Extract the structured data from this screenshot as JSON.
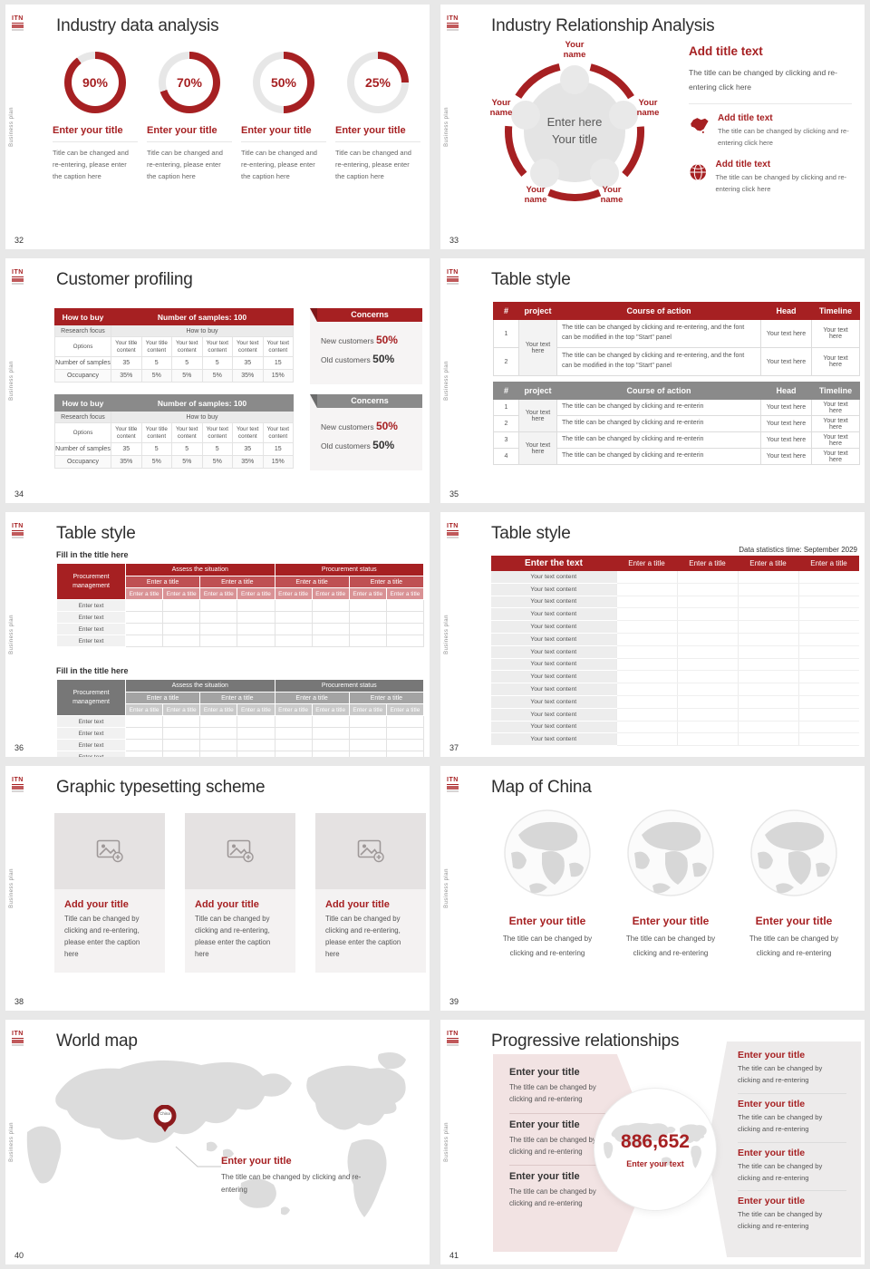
{
  "theme": {
    "accent": "#a62022",
    "accent_dark": "#7d1719",
    "sub_red": "#bf5053",
    "sub_red_light": "#d99295",
    "gray_header": "#8a8a8a",
    "ring_gray": "#e7e7e7"
  },
  "common": {
    "sidebar_label": "Business plan",
    "logo_text": "ITN"
  },
  "slides": {
    "s32": {
      "number": "32",
      "title": "Industry data analysis",
      "donuts": [
        {
          "pct": 90,
          "label": "90%",
          "title": "Enter your title",
          "caption": "Title can be changed and re-entering, please enter the caption here"
        },
        {
          "pct": 70,
          "label": "70%",
          "title": "Enter your title",
          "caption": "Title can be changed and re-entering, please enter the caption here"
        },
        {
          "pct": 50,
          "label": "50%",
          "title": "Enter your title",
          "caption": "Title can be changed and re-entering, please enter the caption here"
        },
        {
          "pct": 25,
          "label": "25%",
          "title": "Enter your title",
          "caption": "Title can be changed and re-entering, please enter the caption here"
        }
      ]
    },
    "s33": {
      "number": "33",
      "title": "Industry Relationship Analysis",
      "node_labels": [
        "Your name",
        "Your name",
        "Your name",
        "Your name",
        "Your name"
      ],
      "center_line1": "Enter here",
      "center_line2": "Your title",
      "main_title": "Add title text",
      "main_caption": "The title can be changed by clicking and re-entering click here",
      "items": [
        {
          "icon": "china-map-icon",
          "title": "Add title text",
          "caption": "The title can be changed by clicking and re-entering click here"
        },
        {
          "icon": "globe-icon",
          "title": "Add title text",
          "caption": "The title can be changed by clicking and re-entering click here"
        }
      ]
    },
    "s34": {
      "number": "34",
      "title": "Customer profiling",
      "table": {
        "header_left": "How to buy",
        "header_right": "Number of samples: 100",
        "focus_label": "Research focus",
        "focus_value": "How to buy",
        "options_label": "Options",
        "options": [
          "Your title content",
          "Your title content",
          "Your text content",
          "Your text content",
          "Your text content",
          "Your text content"
        ],
        "samples_label": "Number of samples",
        "samples": [
          "35",
          "5",
          "5",
          "5",
          "35",
          "15"
        ],
        "occupancy_label": "Occupancy",
        "occupancy": [
          "35%",
          "5%",
          "5%",
          "5%",
          "35%",
          "15%"
        ]
      },
      "concerns": {
        "title": "Concerns",
        "new_label": "New customers",
        "new_value": "50%",
        "old_label": "Old customers",
        "old_value": "50%"
      }
    },
    "s35": {
      "number": "35",
      "title": "Table style",
      "headers": [
        "#",
        "project",
        "Course of action",
        "Head",
        "Timeline"
      ],
      "t1_project": "Your text here",
      "t1_rows": [
        {
          "num": "1",
          "action": "The title can be changed by clicking and re-entering, and the font can be modified in the top \"Start\" panel",
          "head": "Your text here",
          "timeline": "Your text here"
        },
        {
          "num": "2",
          "action": "The title can be changed by clicking and re-entering, and the font can be modified in the top \"Start\" panel",
          "head": "Your text here",
          "timeline": "Your text here"
        }
      ],
      "t2_projects": [
        "Your text here",
        "Your text here"
      ],
      "t2_rows": [
        {
          "num": "1",
          "action": "The title can be changed by clicking and re-enterin",
          "head": "Your text here",
          "timeline": "Your text here"
        },
        {
          "num": "2",
          "action": "The title can be changed by clicking and re-enterin",
          "head": "Your text here",
          "timeline": "Your text here"
        },
        {
          "num": "3",
          "action": "The title can be changed by clicking and re-enterin",
          "head": "Your text here",
          "timeline": "Your text here"
        },
        {
          "num": "4",
          "action": "The title can be changed by clicking and re-enterin",
          "head": "Your text here",
          "timeline": "Your text here"
        }
      ]
    },
    "s36": {
      "number": "36",
      "title": "Table style",
      "section_heading_1": "Fill in the title here",
      "section_heading_2": "Fill in the title here",
      "corner": "Procurement management",
      "group_headers": [
        "Assess the situation",
        "Procurement status"
      ],
      "sub_headers": [
        "Enter a title",
        "Enter a title",
        "Enter a title",
        "Enter a title"
      ],
      "col_headers": [
        "Enter a title",
        "Enter a title",
        "Enter a title",
        "Enter a title",
        "Enter a title",
        "Enter a title",
        "Enter a title",
        "Enter a title"
      ],
      "row_labels": [
        "Enter text",
        "Enter text",
        "Enter text",
        "Enter text"
      ]
    },
    "s37": {
      "number": "37",
      "title": "Table style",
      "meta": "Data statistics time: September 2029",
      "header_main": "Enter the text",
      "header_cols": [
        "Enter a title",
        "Enter a title",
        "Enter a title",
        "Enter a title"
      ],
      "rows": [
        "Your text content",
        "Your text content",
        "Your text content",
        "Your text content",
        "Your text content",
        "Your text content",
        "Your text content",
        "Your text content",
        "Your text content",
        "Your text content",
        "Your text content",
        "Your text content",
        "Your text content",
        "Your text content"
      ]
    },
    "s38": {
      "number": "38",
      "title": "Graphic typesetting scheme",
      "cards": [
        {
          "title": "Add your title",
          "caption": "Title can be changed by clicking and re-entering, please enter the caption here"
        },
        {
          "title": "Add your title",
          "caption": "Title can be changed by clicking and re-entering, please enter the caption here"
        },
        {
          "title": "Add your title",
          "caption": "Title can be changed by clicking and re-entering, please enter the caption here"
        }
      ]
    },
    "s39": {
      "number": "39",
      "title": "Map of China",
      "items": [
        {
          "title": "Enter your title",
          "caption": "The title can be changed by clicking and re-entering"
        },
        {
          "title": "Enter your title",
          "caption": "The title can be changed by clicking and re-entering"
        },
        {
          "title": "Enter your title",
          "caption": "The title can be changed by clicking and re-entering"
        }
      ]
    },
    "s40": {
      "number": "40",
      "title": "World map",
      "pin_label": "China",
      "callout_title": "Enter your title",
      "callout_caption": "The title can be changed by clicking and re-entering"
    },
    "s41": {
      "number": "41",
      "title": "Progressive relationships",
      "center_value": "886,652",
      "center_label": "Enter your text",
      "left_items": [
        {
          "title": "Enter your title",
          "caption": "The title can be changed by clicking and re-entering"
        },
        {
          "title": "Enter your title",
          "caption": "The title can be changed by clicking and re-entering"
        },
        {
          "title": "Enter your title",
          "caption": "The title can be changed by clicking and re-entering"
        }
      ],
      "right_items": [
        {
          "title": "Enter your title",
          "caption": "The title can be changed by clicking and re-entering"
        },
        {
          "title": "Enter your title",
          "caption": "The title can be changed by clicking and re-entering"
        },
        {
          "title": "Enter your title",
          "caption": "The title can be changed by clicking and re-entering"
        },
        {
          "title": "Enter your title",
          "caption": "The title can be changed by clicking and re-entering"
        }
      ]
    }
  }
}
